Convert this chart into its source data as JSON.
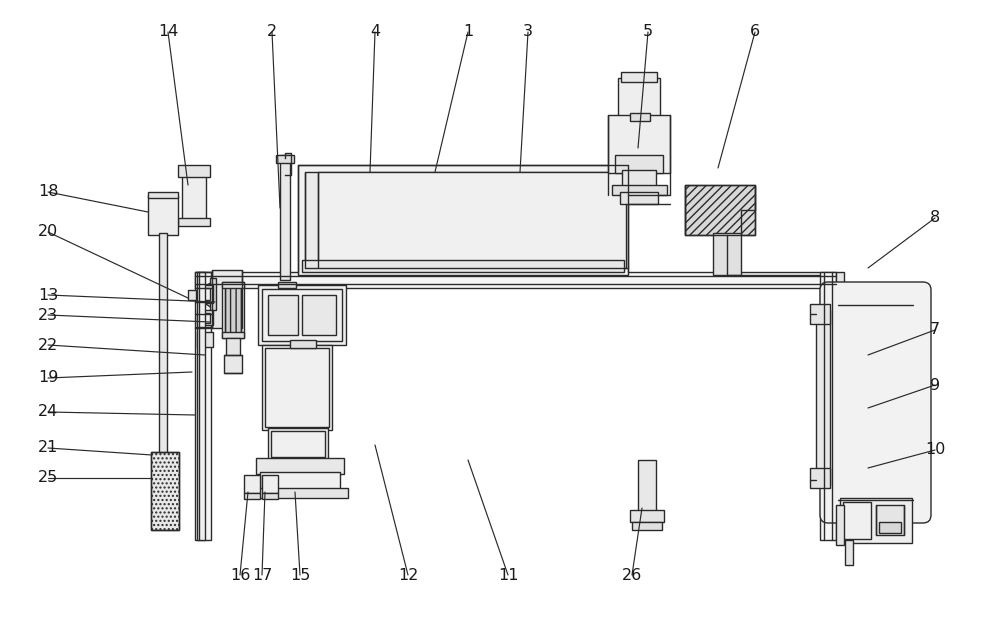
{
  "bg_color": "#ffffff",
  "lc": "#2a2a2a",
  "lw": 1.0,
  "fig_w": 10.0,
  "fig_h": 6.25,
  "labels": [
    [
      "1",
      468,
      32
    ],
    [
      "2",
      272,
      32
    ],
    [
      "3",
      528,
      32
    ],
    [
      "4",
      375,
      32
    ],
    [
      "5",
      648,
      32
    ],
    [
      "6",
      755,
      32
    ],
    [
      "7",
      935,
      330
    ],
    [
      "8",
      935,
      218
    ],
    [
      "9",
      935,
      385
    ],
    [
      "10",
      935,
      450
    ],
    [
      "11",
      508,
      575
    ],
    [
      "12",
      408,
      575
    ],
    [
      "13",
      48,
      295
    ],
    [
      "14",
      168,
      32
    ],
    [
      "15",
      300,
      575
    ],
    [
      "16",
      240,
      575
    ],
    [
      "17",
      262,
      575
    ],
    [
      "18",
      48,
      192
    ],
    [
      "19",
      48,
      378
    ],
    [
      "20",
      48,
      232
    ],
    [
      "21",
      48,
      448
    ],
    [
      "22",
      48,
      345
    ],
    [
      "23",
      48,
      315
    ],
    [
      "24",
      48,
      412
    ],
    [
      "25",
      48,
      478
    ],
    [
      "26",
      632,
      575
    ]
  ],
  "leader_lines": [
    [
      "1",
      468,
      32,
      435,
      172
    ],
    [
      "2",
      272,
      32,
      280,
      208
    ],
    [
      "3",
      528,
      32,
      520,
      172
    ],
    [
      "4",
      375,
      32,
      370,
      172
    ],
    [
      "5",
      648,
      32,
      638,
      148
    ],
    [
      "6",
      755,
      32,
      718,
      168
    ],
    [
      "7",
      935,
      330,
      868,
      355
    ],
    [
      "8",
      935,
      218,
      868,
      268
    ],
    [
      "9",
      935,
      385,
      868,
      408
    ],
    [
      "10",
      935,
      450,
      868,
      468
    ],
    [
      "11",
      508,
      575,
      468,
      460
    ],
    [
      "12",
      408,
      575,
      375,
      445
    ],
    [
      "13",
      48,
      295,
      215,
      302
    ],
    [
      "14",
      168,
      32,
      188,
      185
    ],
    [
      "15",
      300,
      575,
      295,
      492
    ],
    [
      "16",
      240,
      575,
      248,
      492
    ],
    [
      "17",
      262,
      575,
      265,
      492
    ],
    [
      "18",
      48,
      192,
      148,
      212
    ],
    [
      "19",
      48,
      378,
      192,
      372
    ],
    [
      "20",
      48,
      232,
      188,
      298
    ],
    [
      "21",
      48,
      448,
      152,
      455
    ],
    [
      "22",
      48,
      345,
      205,
      355
    ],
    [
      "23",
      48,
      315,
      210,
      322
    ],
    [
      "24",
      48,
      412,
      195,
      415
    ],
    [
      "25",
      48,
      478,
      152,
      478
    ],
    [
      "26",
      632,
      575,
      642,
      508
    ]
  ]
}
